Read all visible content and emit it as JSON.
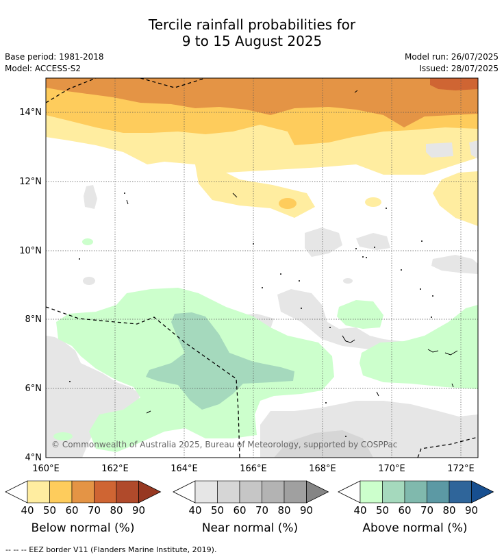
{
  "title": {
    "line1": "Tercile rainfall probabilities for",
    "line2": "9 to 15 August 2025"
  },
  "meta": {
    "base_period": "Base period: 1981-2018",
    "model": "Model: ACCESS-S2",
    "model_run": "Model run: 26/07/2025",
    "issued": "Issued: 28/07/2025"
  },
  "map": {
    "x_ticks": [
      "160°E",
      "162°E",
      "164°E",
      "166°E",
      "168°E",
      "170°E",
      "172°E"
    ],
    "y_ticks": [
      "14°N",
      "12°N",
      "10°N",
      "8°N",
      "6°N",
      "4°N"
    ],
    "copyright": "© Commonwealth of Australia 2025, Bureau of Meteorology, supported by COSPPac"
  },
  "colorbars": [
    {
      "label": "Below normal (%)",
      "ticks": [
        "40",
        "50",
        "60",
        "70",
        "80",
        "90"
      ],
      "colors": [
        "#ffeda0",
        "#fecc5c",
        "#e49445",
        "#cf6533",
        "#b04a2b",
        "#973821"
      ]
    },
    {
      "label": "Near normal (%)",
      "ticks": [
        "40",
        "50",
        "60",
        "70",
        "80",
        "90"
      ],
      "colors": [
        "#e6e6e6",
        "#d6d6d6",
        "#c6c6c6",
        "#b3b3b3",
        "#a0a0a0",
        "#858585"
      ]
    },
    {
      "label": "Above normal (%)",
      "ticks": [
        "40",
        "50",
        "60",
        "70",
        "80",
        "90"
      ],
      "colors": [
        "#ccffcc",
        "#a5d9bd",
        "#80b9ad",
        "#5c99a4",
        "#2f659a",
        "#174f90"
      ]
    }
  ],
  "footnote": "-- -- -- EEZ border V11 (Flanders Marine Institute, 2019)."
}
